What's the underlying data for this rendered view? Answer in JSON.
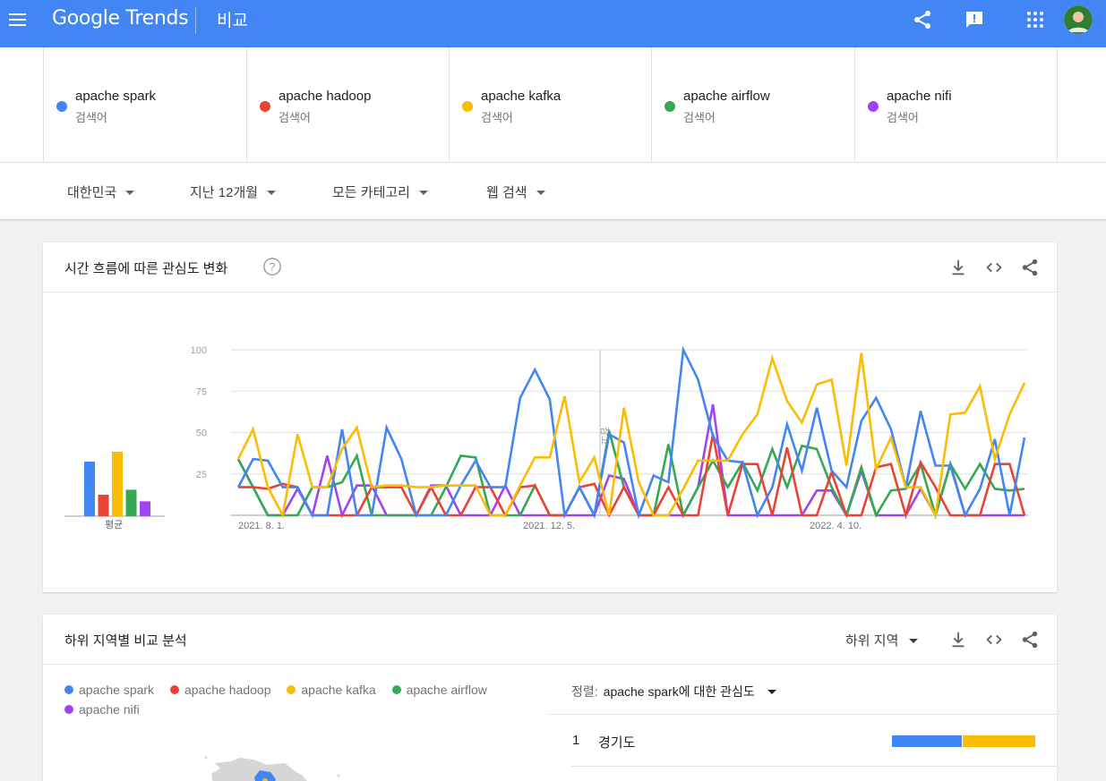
{
  "header": {
    "logo": "Google Trends",
    "page_title": "비교",
    "icons": [
      "share-icon",
      "feedback-icon",
      "apps-icon",
      "account-avatar"
    ]
  },
  "terms": [
    {
      "name": "apache spark",
      "kind": "검색어",
      "color": "#4285f4"
    },
    {
      "name": "apache hadoop",
      "kind": "검색어",
      "color": "#ea4335"
    },
    {
      "name": "apache kafka",
      "kind": "검색어",
      "color": "#fbbc04"
    },
    {
      "name": "apache airflow",
      "kind": "검색어",
      "color": "#34a853"
    },
    {
      "name": "apache nifi",
      "kind": "검색어",
      "color": "#a142f4"
    }
  ],
  "filters": {
    "region": "대한민국",
    "period": "지난 12개월",
    "category": "모든 카테고리",
    "search_type": "웹 검색"
  },
  "interest_card": {
    "title": "시간 흐름에 따른 관심도 변화",
    "avg_label": "평균",
    "note_label": "참고"
  },
  "chart_data": {
    "type": "line",
    "ylim": [
      0,
      100
    ],
    "y_ticks": [
      "100",
      "75",
      "50",
      "25"
    ],
    "x_tick_labels": [
      "2021. 8. 1.",
      "2021. 12. 5.",
      "2022. 4. 10."
    ],
    "grid": true,
    "averages": [
      33,
      13,
      39,
      16,
      9
    ],
    "series": [
      {
        "name": "apache spark",
        "color": "#4285f4",
        "values": [
          17,
          34,
          33,
          17,
          17,
          0,
          0,
          52,
          0,
          0,
          53,
          34,
          0,
          0,
          0,
          18,
          33,
          17,
          17,
          71,
          88,
          70,
          0,
          17,
          0,
          49,
          44,
          0,
          24,
          20,
          100,
          82,
          48,
          33,
          32,
          0,
          17,
          55,
          27,
          65,
          27,
          17,
          57,
          71,
          52,
          17,
          63,
          30,
          30,
          0,
          16,
          46,
          0,
          47
        ]
      },
      {
        "name": "apache hadoop",
        "color": "#ea4335",
        "values": [
          17,
          17,
          16,
          19,
          17,
          0,
          0,
          0,
          0,
          17,
          17,
          17,
          0,
          17,
          0,
          0,
          17,
          17,
          0,
          17,
          18,
          0,
          0,
          17,
          19,
          0,
          17,
          0,
          0,
          17,
          0,
          0,
          49,
          0,
          31,
          31,
          0,
          41,
          0,
          0,
          26,
          0,
          0,
          29,
          31,
          0,
          32,
          17,
          0,
          0,
          0,
          31,
          31,
          0
        ]
      },
      {
        "name": "apache kafka",
        "color": "#fbbc04",
        "values": [
          34,
          52,
          17,
          0,
          49,
          17,
          17,
          40,
          53,
          17,
          18,
          18,
          17,
          17,
          18,
          18,
          18,
          0,
          0,
          18,
          35,
          35,
          72,
          20,
          35,
          0,
          65,
          20,
          0,
          0,
          16,
          33,
          33,
          33,
          49,
          61,
          95,
          69,
          56,
          79,
          82,
          30,
          98,
          28,
          47,
          17,
          17,
          0,
          61,
          62,
          78,
          34,
          61,
          80
        ]
      },
      {
        "name": "apache airflow",
        "color": "#34a853",
        "values": [
          34,
          17,
          0,
          0,
          0,
          17,
          17,
          20,
          36,
          0,
          0,
          0,
          0,
          0,
          17,
          36,
          35,
          0,
          0,
          0,
          18,
          0,
          0,
          17,
          0,
          51,
          17,
          0,
          0,
          43,
          0,
          17,
          33,
          17,
          32,
          15,
          40,
          17,
          42,
          40,
          17,
          0,
          29,
          0,
          15,
          16,
          31,
          0,
          31,
          16,
          31,
          16,
          15,
          16
        ]
      },
      {
        "name": "apache nifi",
        "color": "#a142f4",
        "values": [
          34,
          17,
          0,
          0,
          16,
          0,
          36,
          0,
          18,
          18,
          0,
          0,
          0,
          18,
          18,
          0,
          0,
          0,
          18,
          0,
          0,
          0,
          0,
          0,
          0,
          24,
          22,
          0,
          0,
          0,
          0,
          17,
          67,
          0,
          0,
          0,
          0,
          0,
          0,
          15,
          15,
          0,
          27,
          0,
          0,
          0,
          16,
          0,
          31,
          0,
          0,
          0,
          0,
          0
        ]
      }
    ]
  },
  "region_card": {
    "title": "하위 지역별 비교 분석",
    "scope": "하위 지역",
    "legend": [
      "apache spark",
      "apache hadoop",
      "apache kafka",
      "apache airflow",
      "apache nifi"
    ],
    "sort_label": "정렬:",
    "sort_value": "apache spark에 대한 관심도",
    "rows": [
      {
        "rank": "1",
        "name": "경기도",
        "shares": [
          50,
          50
        ]
      }
    ]
  }
}
